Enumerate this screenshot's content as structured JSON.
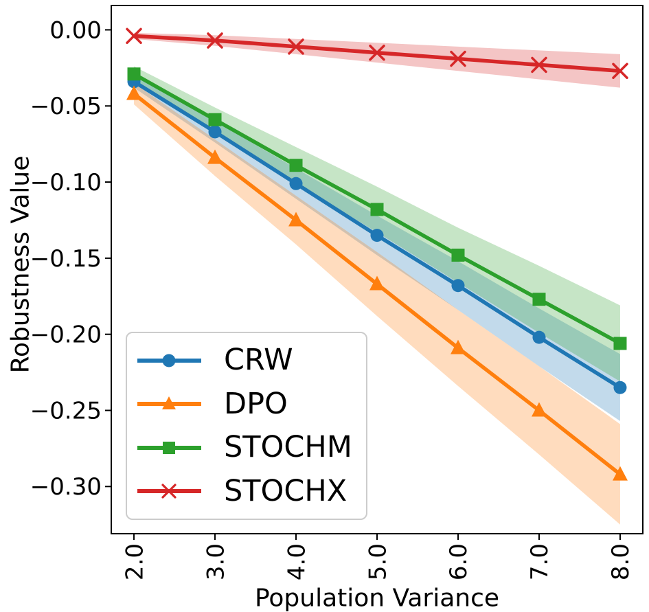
{
  "chart_data": {
    "type": "line",
    "title": "",
    "xlabel": "Population Variance",
    "ylabel": "Robustness Value",
    "grid": false,
    "legend_position": "lower-left",
    "x": [
      2.0,
      3.0,
      4.0,
      5.0,
      6.0,
      7.0,
      8.0
    ],
    "xlim": [
      1.72,
      8.28
    ],
    "ylim": [
      -0.331,
      0.016
    ],
    "xticks": {
      "values": [
        2.0,
        3.0,
        4.0,
        5.0,
        6.0,
        7.0,
        8.0
      ],
      "labels": [
        "2.0",
        "3.0",
        "4.0",
        "5.0",
        "6.0",
        "7.0",
        "8.0"
      ],
      "rotation": 90
    },
    "yticks": {
      "values": [
        0.0,
        -0.05,
        -0.1,
        -0.15,
        -0.2,
        -0.25,
        -0.3
      ],
      "labels": [
        "0.00",
        "−0.05",
        "−0.10",
        "−0.15",
        "−0.20",
        "−0.25",
        "−0.30"
      ]
    },
    "band_alpha": 0.27,
    "series": [
      {
        "name": "CRW",
        "color": "#1f77b4",
        "marker": "circle",
        "values": [
          -0.034,
          -0.067,
          -0.101,
          -0.135,
          -0.168,
          -0.202,
          -0.235
        ],
        "band_halfwidth": [
          0.004,
          0.007,
          0.01,
          0.013,
          0.016,
          0.019,
          0.022
        ]
      },
      {
        "name": "DPO",
        "color": "#ff7f0e",
        "marker": "triangle",
        "values": [
          -0.042,
          -0.084,
          -0.125,
          -0.167,
          -0.209,
          -0.25,
          -0.292
        ],
        "band_halfwidth": [
          0.007,
          0.012,
          0.016,
          0.021,
          0.025,
          0.029,
          0.033
        ]
      },
      {
        "name": "STOCHM",
        "color": "#2ca02c",
        "marker": "square",
        "values": [
          -0.029,
          -0.059,
          -0.089,
          -0.118,
          -0.148,
          -0.177,
          -0.206
        ],
        "band_halfwidth": [
          0.005,
          0.008,
          0.012,
          0.015,
          0.018,
          0.022,
          0.025
        ]
      },
      {
        "name": "STOCHX",
        "color": "#d62728",
        "marker": "x",
        "values": [
          -0.004,
          -0.007,
          -0.011,
          -0.015,
          -0.019,
          -0.023,
          -0.027
        ],
        "band_halfwidth": [
          0.002,
          0.0035,
          0.005,
          0.0065,
          0.008,
          0.0095,
          0.011
        ]
      }
    ]
  }
}
